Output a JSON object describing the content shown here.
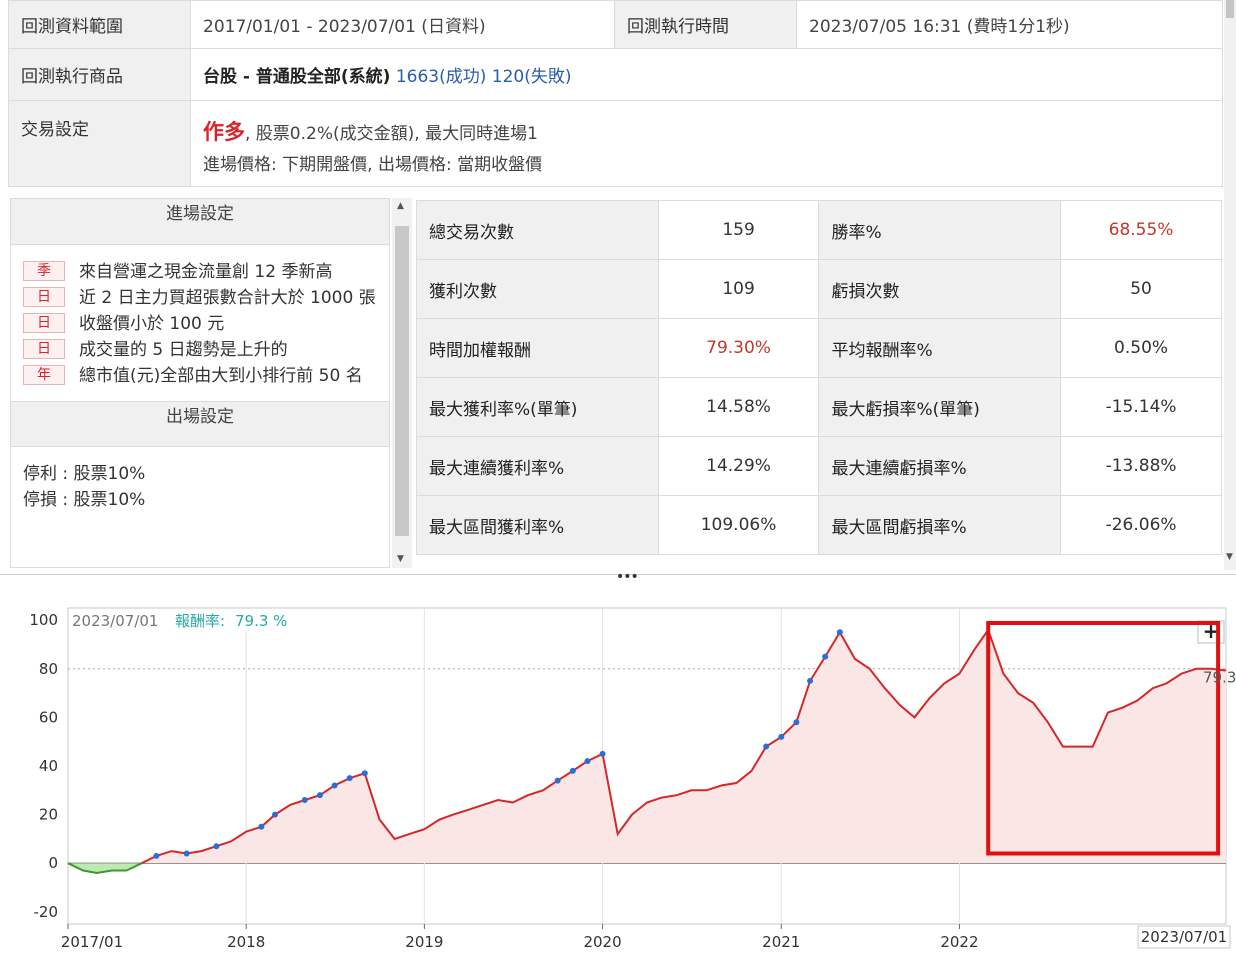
{
  "info": {
    "range_label": "回測資料範圍",
    "range_value": "2017/01/01 - 2023/07/01 (日資料)",
    "exec_time_label": "回測執行時間",
    "exec_time_value": "2023/07/05 16:31 (費時1分1秒)",
    "product_label": "回測執行商品",
    "product_name": "台股 - 普通股全部(系統)",
    "product_success": "1663(成功)",
    "product_fail": "120(失敗)",
    "trade_label": "交易設定",
    "trade_direction": "作多",
    "trade_line1": ", 股票0.2%(成交金額), 最大同時進場1",
    "trade_line2": "進場價格: 下期開盤價, 出場價格: 當期收盤價"
  },
  "entry": {
    "title": "進場設定",
    "conditions": [
      {
        "tag": "季",
        "text": "來自營運之現金流量創 12 季新高"
      },
      {
        "tag": "日",
        "text": "近 2 日主力買超張數合計大於 1000 張"
      },
      {
        "tag": "日",
        "text": "收盤價小於 100 元"
      },
      {
        "tag": "日",
        "text": "成交量的 5 日趨勢是上升的"
      },
      {
        "tag": "年",
        "text": "總市值(元)全部由大到小排行前 50 名"
      }
    ]
  },
  "exit": {
    "title": "出場設定",
    "take_profit": "停利 : 股票10%",
    "stop_loss": "停損 : 股票10%"
  },
  "stats": {
    "rows": [
      [
        {
          "label": "總交易次數",
          "value": "159"
        },
        {
          "label": "勝率%",
          "value": "68.55%",
          "red": true
        }
      ],
      [
        {
          "label": "獲利次數",
          "value": "109"
        },
        {
          "label": "虧損次數",
          "value": "50"
        }
      ],
      [
        {
          "label": "時間加權報酬",
          "value": "79.30%",
          "red": true
        },
        {
          "label": "平均報酬率%",
          "value": "0.50%"
        }
      ],
      [
        {
          "label": "最大獲利率%(單筆)",
          "value": "14.58%"
        },
        {
          "label": "最大虧損率%(單筆)",
          "value": "-15.14%"
        }
      ],
      [
        {
          "label": "最大連續獲利率%",
          "value": "14.29%"
        },
        {
          "label": "最大連續虧損率%",
          "value": "-13.88%"
        }
      ],
      [
        {
          "label": "最大區間獲利率%",
          "value": "109.06%"
        },
        {
          "label": "最大區間虧損率%",
          "value": "-26.06%"
        }
      ]
    ]
  },
  "chart": {
    "legend_date": "2023/07/01",
    "legend_label": "報酬率:",
    "legend_value": "79.3 %",
    "last_value_label": "79.3",
    "cursor_date": "2023/07/01",
    "plus_button": "+",
    "y_ticks": [
      100,
      80,
      60,
      40,
      20,
      0,
      -20
    ],
    "x_labels": [
      "2017/01",
      "2018",
      "2019",
      "2020",
      "2021",
      "2022"
    ],
    "colors": {
      "line": "#d62728",
      "fill": "#fbe6e6",
      "neg_line": "#3a9a2a",
      "neg_fill": "#bfe8b4",
      "marker": "#2a6fd6",
      "highlight": "#e01010"
    }
  },
  "chart_data": {
    "type": "area",
    "ylim": [
      -25,
      105
    ],
    "reference_line": 80,
    "x": [
      "2017-01-01",
      "2017-02-01",
      "2017-03-01",
      "2017-04-01",
      "2017-05-01",
      "2017-06-01",
      "2017-07-01",
      "2017-08-01",
      "2017-09-01",
      "2017-10-01",
      "2017-11-01",
      "2017-12-01",
      "2018-01-01",
      "2018-02-01",
      "2018-03-01",
      "2018-04-01",
      "2018-05-01",
      "2018-06-01",
      "2018-07-01",
      "2018-08-01",
      "2018-09-01",
      "2018-10-01",
      "2018-11-01",
      "2018-12-01",
      "2019-01-01",
      "2019-02-01",
      "2019-03-01",
      "2019-04-01",
      "2019-05-01",
      "2019-06-01",
      "2019-07-01",
      "2019-08-01",
      "2019-09-01",
      "2019-10-01",
      "2019-11-01",
      "2019-12-01",
      "2020-01-01",
      "2020-02-01",
      "2020-03-01",
      "2020-04-01",
      "2020-05-01",
      "2020-06-01",
      "2020-07-01",
      "2020-08-01",
      "2020-09-01",
      "2020-10-01",
      "2020-11-01",
      "2020-12-01",
      "2021-01-01",
      "2021-02-01",
      "2021-03-01",
      "2021-04-01",
      "2021-05-01",
      "2021-06-01",
      "2021-07-01",
      "2021-08-01",
      "2021-09-01",
      "2021-10-01",
      "2021-11-01",
      "2021-12-01",
      "2022-01-01",
      "2022-02-01",
      "2022-03-01",
      "2022-04-01",
      "2022-05-01",
      "2022-06-01",
      "2022-07-01",
      "2022-08-01",
      "2022-09-01",
      "2022-10-01",
      "2022-11-01",
      "2022-12-01",
      "2023-01-01",
      "2023-02-01",
      "2023-03-01",
      "2023-04-01",
      "2023-05-01",
      "2023-06-01",
      "2023-07-01"
    ],
    "values": [
      0,
      -3,
      -4,
      -3,
      -3,
      0,
      3,
      5,
      4,
      5,
      7,
      9,
      13,
      15,
      20,
      24,
      26,
      28,
      32,
      35,
      37,
      18,
      10,
      12,
      14,
      18,
      20,
      22,
      24,
      26,
      25,
      28,
      30,
      34,
      38,
      42,
      45,
      12,
      20,
      25,
      27,
      28,
      30,
      30,
      32,
      33,
      38,
      48,
      52,
      58,
      75,
      85,
      95,
      84,
      80,
      72,
      65,
      60,
      68,
      74,
      78,
      88,
      96,
      78,
      70,
      66,
      58,
      48,
      48,
      48,
      62,
      64,
      67,
      72,
      74,
      78,
      80,
      80,
      79.3
    ],
    "highlight_range": [
      "2022-03-01",
      "2023-06-15"
    ]
  }
}
